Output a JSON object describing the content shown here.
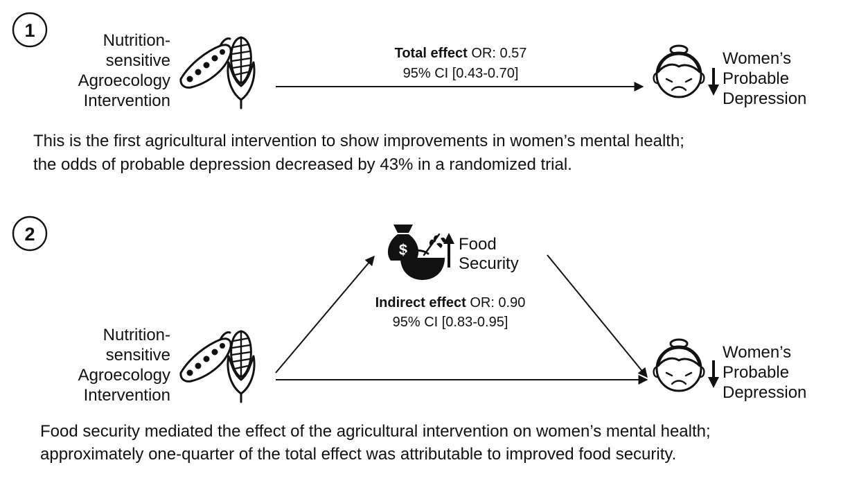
{
  "panel1": {
    "number": "1",
    "source": {
      "lines": [
        "Nutrition-",
        "sensitive",
        "Agroecology",
        "Intervention"
      ]
    },
    "effect": {
      "label_bold": "Total effect",
      "label_rest": " OR: 0.57",
      "ci": "95% CI [0.43-0.70]"
    },
    "outcome": {
      "lines": [
        "Women’s",
        "Probable",
        "Depression"
      ]
    },
    "caption": [
      "This is the first agricultural intervention to show improvements in women’s mental health;",
      "the odds of probable depression decreased by 43% in a randomized trial."
    ]
  },
  "panel2": {
    "number": "2",
    "source": {
      "lines": [
        "Nutrition-",
        "sensitive",
        "Agroecology",
        "Intervention"
      ]
    },
    "mediator": {
      "lines": [
        "Food",
        "Security"
      ]
    },
    "effect": {
      "label_bold": "Indirect effect",
      "label_rest": " OR: 0.90",
      "ci": "95% CI [0.83-0.95]"
    },
    "outcome": {
      "lines": [
        "Women’s",
        "Probable",
        "Depression"
      ]
    },
    "caption": [
      "Food security mediated the effect of the agricultural intervention on women’s mental health;",
      "approximately one-quarter of the total effect was attributable to improved food security."
    ]
  },
  "icons": {
    "intervention": "pea-pod-and-corn-icon",
    "outcome": "sad-woman-face-icon",
    "mediator": "money-bag-and-grain-bowl-icon",
    "decrease": "down-arrow-icon",
    "increase": "up-arrow-icon"
  }
}
